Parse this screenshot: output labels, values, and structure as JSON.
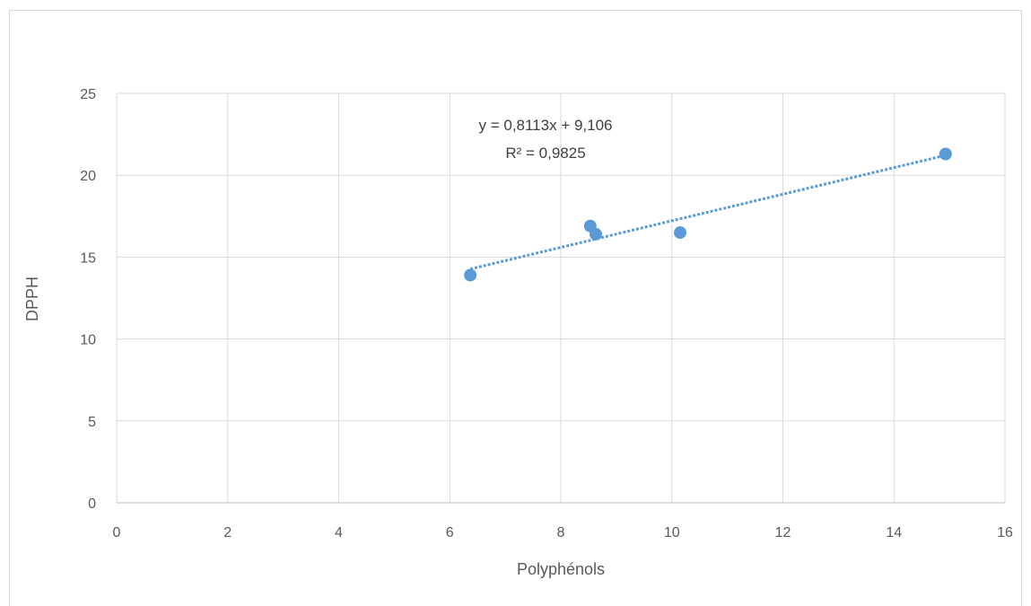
{
  "chart_data": {
    "type": "scatter",
    "title": "",
    "xlabel": "Polyphénols",
    "ylabel": "DPPH",
    "xlim": [
      0,
      16
    ],
    "ylim": [
      0,
      25
    ],
    "x_ticks": [
      0,
      2,
      4,
      6,
      8,
      10,
      12,
      14,
      16
    ],
    "y_ticks": [
      0,
      5,
      10,
      15,
      20,
      25
    ],
    "grid": true,
    "legend": "none",
    "series": [
      {
        "points": [
          {
            "x": 6.37,
            "y": 13.9
          },
          {
            "x": 8.53,
            "y": 16.9
          },
          {
            "x": 8.63,
            "y": 16.4
          },
          {
            "x": 10.15,
            "y": 16.5
          },
          {
            "x": 14.93,
            "y": 21.3
          }
        ],
        "color": "#5b9bd5"
      }
    ],
    "trendline": {
      "type": "linear",
      "slope": 0.8113,
      "intercept": 9.106,
      "x_range": [
        6.37,
        14.93
      ],
      "color": "#5b9bd5",
      "style": "dotted",
      "equation_label": "y = 0,8113x + 9,106",
      "r2_label": "R² = 0,9825"
    }
  }
}
